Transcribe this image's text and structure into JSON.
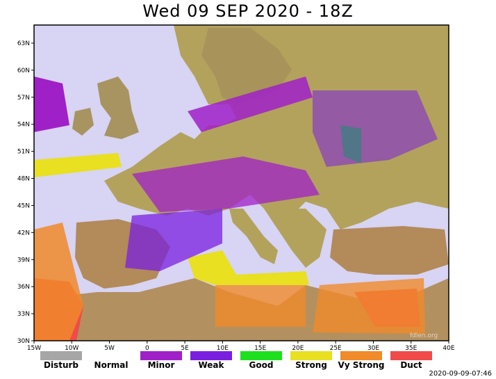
{
  "title": "Wed 09 SEP 2020 - 18Z",
  "timestamp": "2020-09-09-07:46",
  "watermark": "fdlen.org",
  "axes": {
    "x_ticks": [
      "15W",
      "10W",
      "5W",
      "0",
      "5E",
      "10E",
      "15E",
      "20E",
      "25E",
      "30E",
      "35E",
      "40E"
    ],
    "y_ticks": [
      "63N",
      "60N",
      "57N",
      "54N",
      "51N",
      "48N",
      "45N",
      "42N",
      "39N",
      "36N",
      "33N",
      "30N"
    ]
  },
  "legend": [
    {
      "label": "Disturb",
      "color": "#a6a6a6"
    },
    {
      "label": "Normal",
      "color": "#ffffff"
    },
    {
      "label": "Minor",
      "color": "#a020c8"
    },
    {
      "label": "Weak",
      "color": "#7a1fe0"
    },
    {
      "label": "Good",
      "color": "#1ee01e"
    },
    {
      "label": "Strong",
      "color": "#e8e020"
    },
    {
      "label": "Vy Strong",
      "color": "#f08a2a"
    },
    {
      "label": "Duct",
      "color": "#f04a4a"
    }
  ],
  "colors": {
    "sea": "#d7d4f4",
    "land": "#b3a25c",
    "highland": "#c77a52"
  }
}
